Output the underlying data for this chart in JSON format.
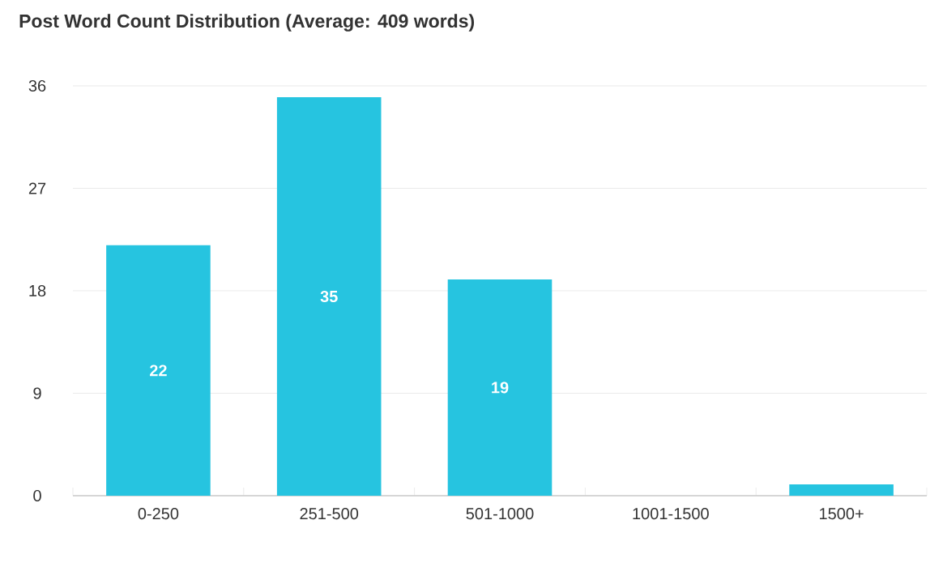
{
  "chart_data": {
    "type": "bar",
    "title": "Post Word Count Distribution (Average: 409 words)",
    "categories": [
      "0-250",
      "251-500",
      "501-1000",
      "1001-1500",
      "1500+"
    ],
    "values": [
      22,
      35,
      19,
      0,
      1
    ],
    "value_labels": [
      "22",
      "35",
      "19",
      null,
      null
    ],
    "color": "#26c4e0",
    "ylim": [
      0,
      36
    ],
    "yticks": [
      0,
      9,
      18,
      27,
      36
    ],
    "grid": "y"
  }
}
